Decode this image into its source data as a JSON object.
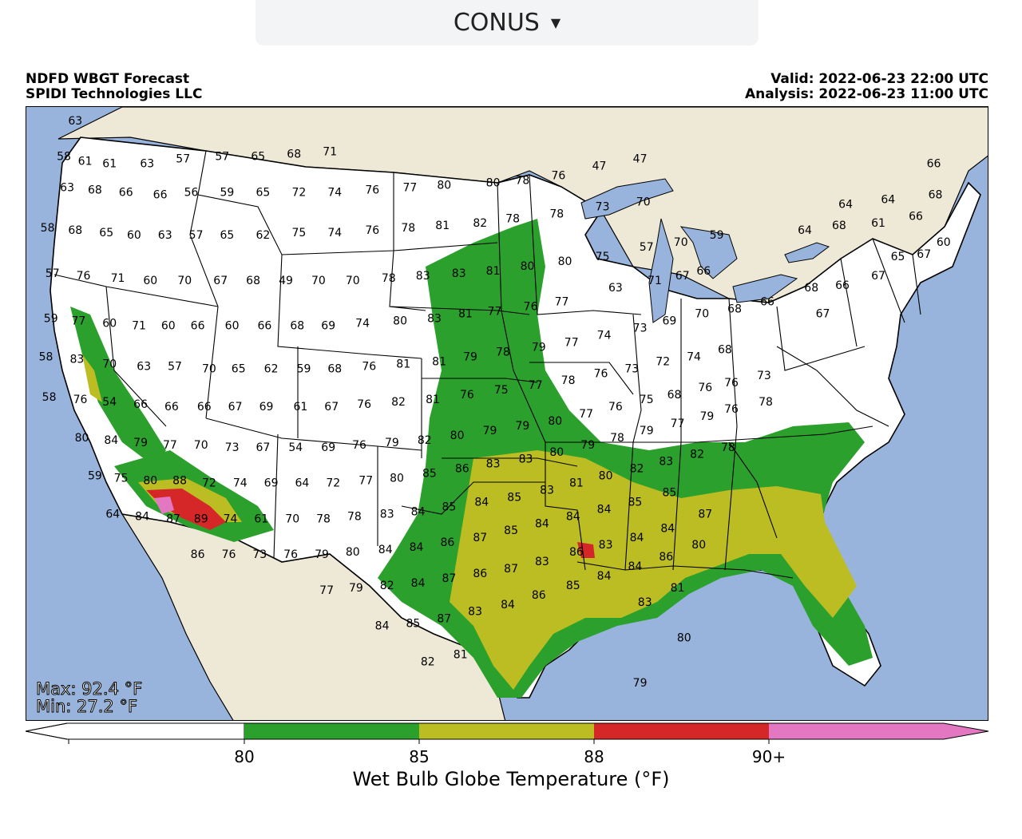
{
  "region_selector": {
    "selected": "CONUS"
  },
  "header": {
    "title_line1": "NDFD WBGT Forecast",
    "title_line2": "SPIDI Technologies LLC",
    "valid": "Valid: 2022-06-23 22:00 UTC",
    "analysis": "Analysis: 2022-06-23 11:00 UTC"
  },
  "stats": {
    "max": "Max: 92.4 °F",
    "min": "Min: 27.2 °F"
  },
  "colorbar": {
    "label": "Wet Bulb Globe Temperature (°F)",
    "ticks": [
      "80",
      "85",
      "88",
      "90+"
    ],
    "bins": [
      {
        "range": "<80",
        "color": "#ffffff"
      },
      {
        "range": "80-85",
        "color": "#2ca02c"
      },
      {
        "range": "85-88",
        "color": "#bcbd22"
      },
      {
        "range": "88-90",
        "color": "#d62728"
      },
      {
        "range": "90+",
        "color": "#e377c2"
      }
    ]
  },
  "colors": {
    "ocean": "#98b4dc",
    "land": "#ede9d6",
    "lakes": "#98b4dc"
  },
  "station_values": [
    {
      "v": "63",
      "lon": -122.8,
      "lat": 49.4
    },
    {
      "v": "58",
      "lon": -123.5,
      "lat": 47.9
    },
    {
      "v": "61",
      "lon": -122.2,
      "lat": 47.7
    },
    {
      "v": "61",
      "lon": -120.7,
      "lat": 47.6
    },
    {
      "v": "63",
      "lon": -118.4,
      "lat": 47.6
    },
    {
      "v": "57",
      "lon": -116.2,
      "lat": 47.8
    },
    {
      "v": "57",
      "lon": -113.8,
      "lat": 47.9
    },
    {
      "v": "65",
      "lon": -111.6,
      "lat": 47.9
    },
    {
      "v": "68",
      "lon": -109.4,
      "lat": 48.0
    },
    {
      "v": "71",
      "lon": -107.2,
      "lat": 48.1
    },
    {
      "v": "63",
      "lon": -123.3,
      "lat": 46.6
    },
    {
      "v": "68",
      "lon": -121.6,
      "lat": 46.5
    },
    {
      "v": "66",
      "lon": -119.7,
      "lat": 46.4
    },
    {
      "v": "66",
      "lon": -117.6,
      "lat": 46.3
    },
    {
      "v": "56",
      "lon": -115.7,
      "lat": 46.4
    },
    {
      "v": "59",
      "lon": -113.5,
      "lat": 46.4
    },
    {
      "v": "65",
      "lon": -111.3,
      "lat": 46.4
    },
    {
      "v": "72",
      "lon": -109.1,
      "lat": 46.4
    },
    {
      "v": "74",
      "lon": -106.9,
      "lat": 46.4
    },
    {
      "v": "76",
      "lon": -104.6,
      "lat": 46.5
    },
    {
      "v": "77",
      "lon": -102.3,
      "lat": 46.6
    },
    {
      "v": "80",
      "lon": -100.2,
      "lat": 46.7
    },
    {
      "v": "80",
      "lon": -97.2,
      "lat": 46.8
    },
    {
      "v": "78",
      "lon": -95.4,
      "lat": 46.9
    },
    {
      "v": "76",
      "lon": -93.2,
      "lat": 47.1
    },
    {
      "v": "47",
      "lon": -90.7,
      "lat": 47.5
    },
    {
      "v": "47",
      "lon": -88.2,
      "lat": 47.8
    },
    {
      "v": "64",
      "lon": -75.6,
      "lat": 45.9
    },
    {
      "v": "64",
      "lon": -73.0,
      "lat": 46.1
    },
    {
      "v": "66",
      "lon": -70.2,
      "lat": 47.6
    },
    {
      "v": "68",
      "lon": -70.1,
      "lat": 46.3
    },
    {
      "v": "58",
      "lon": -124.5,
      "lat": 44.9
    },
    {
      "v": "68",
      "lon": -122.8,
      "lat": 44.8
    },
    {
      "v": "65",
      "lon": -120.9,
      "lat": 44.7
    },
    {
      "v": "60",
      "lon": -119.2,
      "lat": 44.6
    },
    {
      "v": "63",
      "lon": -117.3,
      "lat": 44.6
    },
    {
      "v": "57",
      "lon": -115.4,
      "lat": 44.6
    },
    {
      "v": "65",
      "lon": -113.5,
      "lat": 44.6
    },
    {
      "v": "62",
      "lon": -111.3,
      "lat": 44.6
    },
    {
      "v": "75",
      "lon": -109.1,
      "lat": 44.7
    },
    {
      "v": "74",
      "lon": -106.9,
      "lat": 44.7
    },
    {
      "v": "76",
      "lon": -104.6,
      "lat": 44.8
    },
    {
      "v": "78",
      "lon": -102.4,
      "lat": 44.9
    },
    {
      "v": "81",
      "lon": -100.3,
      "lat": 45.0
    },
    {
      "v": "82",
      "lon": -98.0,
      "lat": 45.1
    },
    {
      "v": "78",
      "lon": -96.0,
      "lat": 45.3
    },
    {
      "v": "78",
      "lon": -93.3,
      "lat": 45.5
    },
    {
      "v": "73",
      "lon": -90.5,
      "lat": 45.8
    },
    {
      "v": "70",
      "lon": -88.0,
      "lat": 46.0
    },
    {
      "v": "64",
      "lon": -78.1,
      "lat": 44.8
    },
    {
      "v": "68",
      "lon": -76.0,
      "lat": 45.0
    },
    {
      "v": "61",
      "lon": -73.6,
      "lat": 45.1
    },
    {
      "v": "66",
      "lon": -71.3,
      "lat": 45.4
    },
    {
      "v": "57",
      "lon": -124.2,
      "lat": 43.0
    },
    {
      "v": "76",
      "lon": -122.3,
      "lat": 42.9
    },
    {
      "v": "71",
      "lon": -120.2,
      "lat": 42.8
    },
    {
      "v": "60",
      "lon": -118.2,
      "lat": 42.7
    },
    {
      "v": "70",
      "lon": -116.1,
      "lat": 42.7
    },
    {
      "v": "67",
      "lon": -113.9,
      "lat": 42.7
    },
    {
      "v": "68",
      "lon": -111.9,
      "lat": 42.7
    },
    {
      "v": "49",
      "lon": -109.9,
      "lat": 42.7
    },
    {
      "v": "70",
      "lon": -107.9,
      "lat": 42.7
    },
    {
      "v": "70",
      "lon": -105.8,
      "lat": 42.7
    },
    {
      "v": "78",
      "lon": -103.6,
      "lat": 42.8
    },
    {
      "v": "83",
      "lon": -101.5,
      "lat": 42.9
    },
    {
      "v": "83",
      "lon": -99.3,
      "lat": 43.0
    },
    {
      "v": "81",
      "lon": -97.2,
      "lat": 43.1
    },
    {
      "v": "80",
      "lon": -95.1,
      "lat": 43.3
    },
    {
      "v": "80",
      "lon": -92.8,
      "lat": 43.5
    },
    {
      "v": "75",
      "lon": -90.5,
      "lat": 43.7
    },
    {
      "v": "57",
      "lon": -87.8,
      "lat": 44.1
    },
    {
      "v": "70",
      "lon": -85.7,
      "lat": 44.3
    },
    {
      "v": "59",
      "lon": -83.5,
      "lat": 44.6
    },
    {
      "v": "65",
      "lon": -72.4,
      "lat": 43.7
    },
    {
      "v": "67",
      "lon": -70.8,
      "lat": 43.8
    },
    {
      "v": "60",
      "lon": -69.6,
      "lat": 44.3
    },
    {
      "v": "59",
      "lon": -124.3,
      "lat": 41.1
    },
    {
      "v": "77",
      "lon": -122.6,
      "lat": 41.0
    },
    {
      "v": "60",
      "lon": -120.7,
      "lat": 40.9
    },
    {
      "v": "71",
      "lon": -118.9,
      "lat": 40.8
    },
    {
      "v": "60",
      "lon": -117.1,
      "lat": 40.8
    },
    {
      "v": "66",
      "lon": -115.3,
      "lat": 40.8
    },
    {
      "v": "60",
      "lon": -113.2,
      "lat": 40.8
    },
    {
      "v": "66",
      "lon": -111.2,
      "lat": 40.8
    },
    {
      "v": "68",
      "lon": -109.2,
      "lat": 40.8
    },
    {
      "v": "69",
      "lon": -107.3,
      "lat": 40.8
    },
    {
      "v": "74",
      "lon": -105.2,
      "lat": 40.9
    },
    {
      "v": "80",
      "lon": -102.9,
      "lat": 41.0
    },
    {
      "v": "83",
      "lon": -100.8,
      "lat": 41.1
    },
    {
      "v": "81",
      "lon": -98.9,
      "lat": 41.3
    },
    {
      "v": "77",
      "lon": -97.1,
      "lat": 41.4
    },
    {
      "v": "76",
      "lon": -94.9,
      "lat": 41.6
    },
    {
      "v": "77",
      "lon": -93.0,
      "lat": 41.8
    },
    {
      "v": "63",
      "lon": -89.7,
      "lat": 42.4
    },
    {
      "v": "71",
      "lon": -87.3,
      "lat": 42.7
    },
    {
      "v": "67",
      "lon": -85.6,
      "lat": 42.9
    },
    {
      "v": "66",
      "lon": -84.3,
      "lat": 43.1
    },
    {
      "v": "68",
      "lon": -77.7,
      "lat": 42.4
    },
    {
      "v": "66",
      "lon": -75.8,
      "lat": 42.5
    },
    {
      "v": "67",
      "lon": -73.6,
      "lat": 42.9
    },
    {
      "v": "58",
      "lon": -124.6,
      "lat": 39.5
    },
    {
      "v": "83",
      "lon": -122.7,
      "lat": 39.4
    },
    {
      "v": "70",
      "lon": -120.7,
      "lat": 39.2
    },
    {
      "v": "63",
      "lon": -118.6,
      "lat": 39.1
    },
    {
      "v": "57",
      "lon": -116.7,
      "lat": 39.1
    },
    {
      "v": "70",
      "lon": -114.6,
      "lat": 39.0
    },
    {
      "v": "65",
      "lon": -112.8,
      "lat": 39.0
    },
    {
      "v": "62",
      "lon": -110.8,
      "lat": 39.0
    },
    {
      "v": "59",
      "lon": -108.8,
      "lat": 39.0
    },
    {
      "v": "68",
      "lon": -106.9,
      "lat": 39.0
    },
    {
      "v": "76",
      "lon": -104.8,
      "lat": 39.1
    },
    {
      "v": "81",
      "lon": -102.7,
      "lat": 39.2
    },
    {
      "v": "81",
      "lon": -100.5,
      "lat": 39.3
    },
    {
      "v": "79",
      "lon": -98.6,
      "lat": 39.5
    },
    {
      "v": "78",
      "lon": -96.6,
      "lat": 39.7
    },
    {
      "v": "79",
      "lon": -94.4,
      "lat": 39.9
    },
    {
      "v": "77",
      "lon": -92.4,
      "lat": 40.1
    },
    {
      "v": "74",
      "lon": -90.4,
      "lat": 40.4
    },
    {
      "v": "73",
      "lon": -88.2,
      "lat": 40.7
    },
    {
      "v": "69",
      "lon": -86.4,
      "lat": 41.0
    },
    {
      "v": "70",
      "lon": -84.4,
      "lat": 41.3
    },
    {
      "v": "68",
      "lon": -82.4,
      "lat": 41.5
    },
    {
      "v": "66",
      "lon": -80.4,
      "lat": 41.8
    },
    {
      "v": "67",
      "lon": -77.0,
      "lat": 41.3
    },
    {
      "v": "58",
      "lon": -124.4,
      "lat": 37.8
    },
    {
      "v": "76",
      "lon": -122.5,
      "lat": 37.7
    },
    {
      "v": "54",
      "lon": -120.7,
      "lat": 37.6
    },
    {
      "v": "66",
      "lon": -118.8,
      "lat": 37.5
    },
    {
      "v": "66",
      "lon": -116.9,
      "lat": 37.4
    },
    {
      "v": "66",
      "lon": -114.9,
      "lat": 37.4
    },
    {
      "v": "67",
      "lon": -113.0,
      "lat": 37.4
    },
    {
      "v": "69",
      "lon": -111.1,
      "lat": 37.4
    },
    {
      "v": "61",
      "lon": -109.0,
      "lat": 37.4
    },
    {
      "v": "67",
      "lon": -107.1,
      "lat": 37.4
    },
    {
      "v": "76",
      "lon": -105.1,
      "lat": 37.5
    },
    {
      "v": "82",
      "lon": -103.0,
      "lat": 37.6
    },
    {
      "v": "81",
      "lon": -100.9,
      "lat": 37.7
    },
    {
      "v": "76",
      "lon": -98.8,
      "lat": 37.9
    },
    {
      "v": "75",
      "lon": -96.7,
      "lat": 38.1
    },
    {
      "v": "77",
      "lon": -94.6,
      "lat": 38.3
    },
    {
      "v": "78",
      "lon": -92.6,
      "lat": 38.5
    },
    {
      "v": "76",
      "lon": -90.6,
      "lat": 38.8
    },
    {
      "v": "73",
      "lon": -88.7,
      "lat": 39.0
    },
    {
      "v": "72",
      "lon": -86.8,
      "lat": 39.3
    },
    {
      "v": "74",
      "lon": -84.9,
      "lat": 39.5
    },
    {
      "v": "68",
      "lon": -83.0,
      "lat": 39.8
    },
    {
      "v": "80",
      "lon": -122.4,
      "lat": 36.1
    },
    {
      "v": "84",
      "lon": -120.6,
      "lat": 36.0
    },
    {
      "v": "79",
      "lon": -118.8,
      "lat": 35.9
    },
    {
      "v": "77",
      "lon": -117.0,
      "lat": 35.8
    },
    {
      "v": "70",
      "lon": -115.1,
      "lat": 35.8
    },
    {
      "v": "73",
      "lon": -113.2,
      "lat": 35.7
    },
    {
      "v": "67",
      "lon": -111.3,
      "lat": 35.7
    },
    {
      "v": "54",
      "lon": -109.3,
      "lat": 35.7
    },
    {
      "v": "69",
      "lon": -107.3,
      "lat": 35.7
    },
    {
      "v": "76",
      "lon": -105.4,
      "lat": 35.8
    },
    {
      "v": "79",
      "lon": -103.4,
      "lat": 35.9
    },
    {
      "v": "82",
      "lon": -101.4,
      "lat": 36.0
    },
    {
      "v": "80",
      "lon": -99.4,
      "lat": 36.2
    },
    {
      "v": "79",
      "lon": -97.4,
      "lat": 36.4
    },
    {
      "v": "79",
      "lon": -95.4,
      "lat": 36.6
    },
    {
      "v": "80",
      "lon": -93.4,
      "lat": 36.8
    },
    {
      "v": "77",
      "lon": -91.5,
      "lat": 37.1
    },
    {
      "v": "76",
      "lon": -89.7,
      "lat": 37.4
    },
    {
      "v": "75",
      "lon": -87.8,
      "lat": 37.7
    },
    {
      "v": "68",
      "lon": -86.1,
      "lat": 37.9
    },
    {
      "v": "76",
      "lon": -84.2,
      "lat": 38.2
    },
    {
      "v": "76",
      "lon": -82.6,
      "lat": 38.4
    },
    {
      "v": "73",
      "lon": -80.6,
      "lat": 38.7
    },
    {
      "v": "59",
      "lon": -121.6,
      "lat": 34.5
    },
    {
      "v": "75",
      "lon": -120.0,
      "lat": 34.4
    },
    {
      "v": "80",
      "lon": -118.2,
      "lat": 34.3
    },
    {
      "v": "88",
      "lon": -116.4,
      "lat": 34.3
    },
    {
      "v": "72",
      "lon": -114.6,
      "lat": 34.2
    },
    {
      "v": "74",
      "lon": -112.7,
      "lat": 34.2
    },
    {
      "v": "69",
      "lon": -110.8,
      "lat": 34.2
    },
    {
      "v": "64",
      "lon": -108.9,
      "lat": 34.2
    },
    {
      "v": "72",
      "lon": -107.0,
      "lat": 34.2
    },
    {
      "v": "77",
      "lon": -105.0,
      "lat": 34.3
    },
    {
      "v": "80",
      "lon": -103.1,
      "lat": 34.4
    },
    {
      "v": "85",
      "lon": -101.1,
      "lat": 34.6
    },
    {
      "v": "86",
      "lon": -99.1,
      "lat": 34.8
    },
    {
      "v": "83",
      "lon": -97.2,
      "lat": 35.0
    },
    {
      "v": "83",
      "lon": -95.2,
      "lat": 35.2
    },
    {
      "v": "80",
      "lon": -93.3,
      "lat": 35.5
    },
    {
      "v": "79",
      "lon": -91.4,
      "lat": 35.8
    },
    {
      "v": "78",
      "lon": -89.6,
      "lat": 36.1
    },
    {
      "v": "79",
      "lon": -87.8,
      "lat": 36.4
    },
    {
      "v": "77",
      "lon": -85.9,
      "lat": 36.7
    },
    {
      "v": "79",
      "lon": -84.1,
      "lat": 37.0
    },
    {
      "v": "76",
      "lon": -82.6,
      "lat": 37.3
    },
    {
      "v": "78",
      "lon": -80.5,
      "lat": 37.6
    },
    {
      "v": "64",
      "lon": -120.5,
      "lat": 32.9
    },
    {
      "v": "84",
      "lon": -118.7,
      "lat": 32.8
    },
    {
      "v": "87",
      "lon": -116.8,
      "lat": 32.7
    },
    {
      "v": "89",
      "lon": -115.1,
      "lat": 32.7
    },
    {
      "v": "74",
      "lon": -113.3,
      "lat": 32.7
    },
    {
      "v": "61",
      "lon": -111.4,
      "lat": 32.7
    },
    {
      "v": "70",
      "lon": -109.5,
      "lat": 32.7
    },
    {
      "v": "78",
      "lon": -107.6,
      "lat": 32.7
    },
    {
      "v": "78",
      "lon": -105.7,
      "lat": 32.8
    },
    {
      "v": "83",
      "lon": -103.7,
      "lat": 32.9
    },
    {
      "v": "84",
      "lon": -101.8,
      "lat": 33.0
    },
    {
      "v": "85",
      "lon": -99.9,
      "lat": 33.2
    },
    {
      "v": "84",
      "lon": -97.9,
      "lat": 33.4
    },
    {
      "v": "85",
      "lon": -95.9,
      "lat": 33.6
    },
    {
      "v": "83",
      "lon": -93.9,
      "lat": 33.9
    },
    {
      "v": "81",
      "lon": -92.1,
      "lat": 34.2
    },
    {
      "v": "80",
      "lon": -90.3,
      "lat": 34.5
    },
    {
      "v": "82",
      "lon": -88.4,
      "lat": 34.8
    },
    {
      "v": "83",
      "lon": -86.6,
      "lat": 35.1
    },
    {
      "v": "82",
      "lon": -84.7,
      "lat": 35.4
    },
    {
      "v": "78",
      "lon": -82.8,
      "lat": 35.7
    },
    {
      "v": "86",
      "lon": -115.3,
      "lat": 31.2
    },
    {
      "v": "76",
      "lon": -113.4,
      "lat": 31.2
    },
    {
      "v": "73",
      "lon": -111.5,
      "lat": 31.2
    },
    {
      "v": "76",
      "lon": -109.6,
      "lat": 31.2
    },
    {
      "v": "79",
      "lon": -107.7,
      "lat": 31.2
    },
    {
      "v": "80",
      "lon": -105.8,
      "lat": 31.3
    },
    {
      "v": "84",
      "lon": -103.8,
      "lat": 31.4
    },
    {
      "v": "84",
      "lon": -101.9,
      "lat": 31.5
    },
    {
      "v": "86",
      "lon": -100.0,
      "lat": 31.7
    },
    {
      "v": "87",
      "lon": -98.0,
      "lat": 31.9
    },
    {
      "v": "85",
      "lon": -96.1,
      "lat": 32.2
    },
    {
      "v": "84",
      "lon": -94.2,
      "lat": 32.5
    },
    {
      "v": "84",
      "lon": -92.3,
      "lat": 32.8
    },
    {
      "v": "84",
      "lon": -90.4,
      "lat": 33.1
    },
    {
      "v": "85",
      "lon": -88.5,
      "lat": 33.4
    },
    {
      "v": "85",
      "lon": -86.4,
      "lat": 33.8
    },
    {
      "v": "77",
      "lon": -107.4,
      "lat": 29.7
    },
    {
      "v": "79",
      "lon": -105.6,
      "lat": 29.8
    },
    {
      "v": "82",
      "lon": -103.7,
      "lat": 29.9
    },
    {
      "v": "84",
      "lon": -101.8,
      "lat": 30.0
    },
    {
      "v": "87",
      "lon": -99.9,
      "lat": 30.2
    },
    {
      "v": "86",
      "lon": -98.0,
      "lat": 30.4
    },
    {
      "v": "87",
      "lon": -96.1,
      "lat": 30.6
    },
    {
      "v": "83",
      "lon": -94.2,
      "lat": 30.9
    },
    {
      "v": "86",
      "lon": -92.1,
      "lat": 31.3
    },
    {
      "v": "83",
      "lon": -90.3,
      "lat": 31.6
    },
    {
      "v": "84",
      "lon": -88.4,
      "lat": 31.9
    },
    {
      "v": "84",
      "lon": -86.5,
      "lat": 32.3
    },
    {
      "v": "87",
      "lon": -84.2,
      "lat": 32.9
    },
    {
      "v": "84",
      "lon": -104.0,
      "lat": 28.2
    },
    {
      "v": "85",
      "lon": -102.1,
      "lat": 28.3
    },
    {
      "v": "87",
      "lon": -100.2,
      "lat": 28.5
    },
    {
      "v": "83",
      "lon": -98.3,
      "lat": 28.8
    },
    {
      "v": "84",
      "lon": -96.3,
      "lat": 29.1
    },
    {
      "v": "86",
      "lon": -94.4,
      "lat": 29.5
    },
    {
      "v": "85",
      "lon": -92.3,
      "lat": 29.9
    },
    {
      "v": "84",
      "lon": -90.4,
      "lat": 30.3
    },
    {
      "v": "84",
      "lon": -88.5,
      "lat": 30.7
    },
    {
      "v": "86",
      "lon": -86.6,
      "lat": 31.1
    },
    {
      "v": "80",
      "lon": -84.6,
      "lat": 31.6
    },
    {
      "v": "82",
      "lon": -101.2,
      "lat": 26.7
    },
    {
      "v": "81",
      "lon": -99.2,
      "lat": 27.0
    },
    {
      "v": "83",
      "lon": -87.9,
      "lat": 29.2
    },
    {
      "v": "81",
      "lon": -85.9,
      "lat": 29.8
    },
    {
      "v": "80",
      "lon": -85.5,
      "lat": 27.7
    },
    {
      "v": "79",
      "lon": -88.2,
      "lat": 25.8
    }
  ]
}
